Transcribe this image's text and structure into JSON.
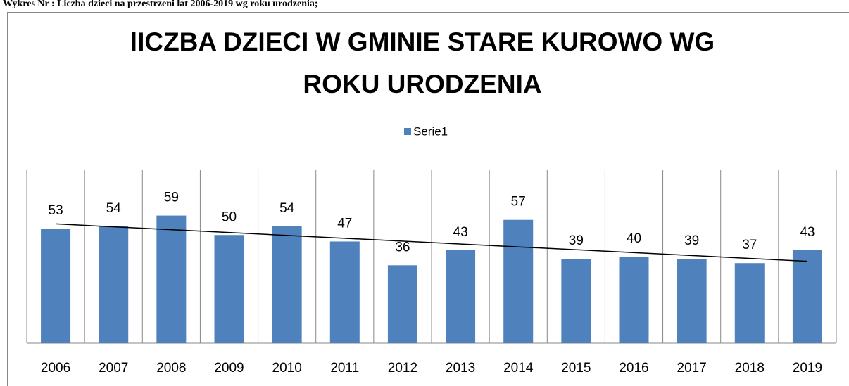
{
  "caption": "Wykres Nr : Liczba dzieci na przestrzeni lat 2006-2019 wg roku urodzenia;",
  "chart_data": {
    "type": "bar",
    "title": [
      "lICZBA DZIECI W GMINIE STARE KUROWO WG",
      "ROKU URODZENIA"
    ],
    "categories": [
      "2006",
      "2007",
      "2008",
      "2009",
      "2010",
      "2011",
      "2012",
      "2013",
      "2014",
      "2015",
      "2016",
      "2017",
      "2018",
      "2019"
    ],
    "series": [
      {
        "name": "Serie1",
        "color": "#4f81bd",
        "values": [
          53,
          54,
          59,
          50,
          54,
          47,
          36,
          43,
          57,
          39,
          40,
          39,
          37,
          43
        ]
      }
    ],
    "ylim": [
      0,
      80
    ],
    "legend": "top",
    "vertical_grid": true,
    "trendline": "linear"
  }
}
